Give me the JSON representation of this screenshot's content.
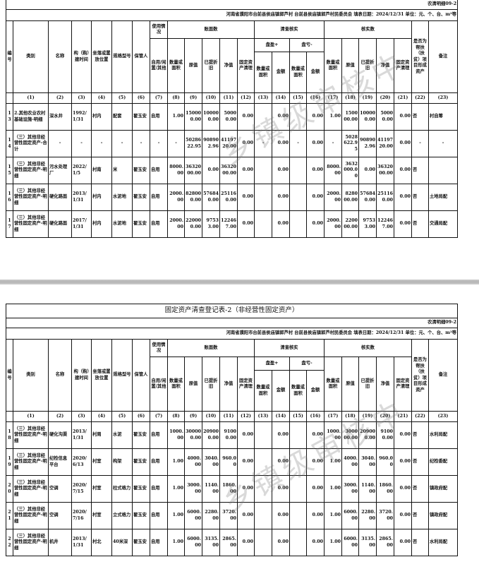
{
  "watermark": "乡镇级审核中",
  "title": "固定资产清查登记表-2（非经营性固定资产）",
  "form_code": "农清明细09-2",
  "info_line": "河南省濮阳市台前县侯庙镇郭芦村  台前县侯庙镇郭芦村民委员会  填表日期：2024/12/31  单位：元、个、台、m²等",
  "headers": {
    "no": "编号",
    "category": "类别",
    "name": "名称",
    "date": "构（购）建时间",
    "location": "坐落或置放位置",
    "spec": "规格型号",
    "keeper": "保管人",
    "usage_group": "使用情况",
    "usage": "自用/闲置/其他",
    "book_group": "账面数",
    "check_group": "清查核实",
    "verified_group": "核实数",
    "qty": "数量或面积",
    "orig": "原值",
    "depr": "已提折旧",
    "net": "净值",
    "clear": "固定资产清理",
    "gain": "盘盈+",
    "loss": "盘亏-",
    "amount": "金额",
    "aid": "是否为帮扶（扶贫）项目形成资产",
    "remark": "备注"
  },
  "index_labels": [
    "",
    "(1)",
    "(2)",
    "(3)",
    "(4)",
    "(5)",
    "(6)",
    "(7)",
    "(8)",
    "(9)",
    "(10)",
    "(11)",
    "(12)",
    "(13)",
    "(14)",
    "(15)",
    "(16)",
    "(17)",
    "(18)",
    "(19)",
    "(20)",
    "(21)",
    "(22)",
    "(23)"
  ],
  "pages": [
    {
      "rows": [
        [
          "13",
          "2.其他农业农村基础设施-明细",
          "深水井",
          "1992/1/31",
          "村内",
          "配套",
          "翟玉安",
          "自用",
          "1.00",
          "150000.00",
          "100000.00",
          "50000.00",
          "0.00",
          "",
          "0.00",
          "",
          "0.00",
          "1.00",
          "150000.00",
          "100000.00",
          "50000.00",
          "0.00",
          "否",
          "村自筹"
        ],
        [
          "14",
          "（三）其他非经营性固定资产-合计",
          "-",
          "-",
          "-",
          "-",
          "-",
          "-",
          "-",
          "5028622.95",
          "908902.96",
          "4119720.00",
          "0.00",
          "-",
          "0.00",
          "-",
          "0.00",
          "-",
          "5028622.95",
          "908902.96",
          "4119720.00",
          "0.00",
          "-",
          "-"
        ],
        [
          "15",
          "（三）其他非经营性固定资产-明细",
          "污水处理厂",
          "2022/1/5",
          "村南",
          "米",
          "翟玉安",
          "自用",
          "8000.00",
          "3632000.00",
          "0.00",
          "3632000.00",
          "0.00",
          "",
          "0.00",
          "",
          "0.00",
          "8000.00",
          "3632000.00",
          "0.00",
          "3632000.00",
          "0.00",
          "否",
          ""
        ],
        [
          "16",
          "（三）其他非经营性固定资产-明细",
          "硬化路面",
          "2013/1/31",
          "村内",
          "水泥地",
          "翟玉安",
          "自用",
          "2000.00",
          "828000.00",
          "576840.00",
          "251160.00",
          "0.00",
          "",
          "0.00",
          "",
          "0.00",
          "2000.00",
          "828000.00",
          "576840.00",
          "251160.00",
          "0.00",
          "否",
          "土地局配"
        ],
        [
          "17",
          "（三）其他非经营性固定资产-明细",
          "硬化路面",
          "2017/1/31",
          "村内",
          "水泥地",
          "翟玉安",
          "自用",
          "2000.00",
          "220000.00",
          "97533.00",
          "122467.00",
          "0.00",
          "",
          "0.00",
          "",
          "0.00",
          "2000.00",
          "220000.00",
          "97533.00",
          "122467.00",
          "0.00",
          "否",
          "交通局配"
        ]
      ]
    },
    {
      "rows": [
        [
          "18",
          "（三）其他非经营性固定资产-明细",
          "硬化沟渠",
          "2013/1/31",
          "村周",
          "水泥",
          "翟玉安",
          "自用",
          "1000.00",
          "300000.00",
          "209000.00",
          "91000.00",
          "0.00",
          "",
          "0.00",
          "",
          "0.00",
          "1000.00",
          "300000.00",
          "209000.00",
          "91000.00",
          "0.00",
          "否",
          "水利局配"
        ],
        [
          "19",
          "（三）其他非经营性固定资产-明细",
          "纪检信息平台",
          "2020/6/13",
          "村室",
          "构架",
          "翟玉安",
          "自用",
          "1.00",
          "4000.00",
          "3040.00",
          "960.00",
          "0.00",
          "",
          "0.00",
          "",
          "0.00",
          "1.00",
          "4000.00",
          "3040.00",
          "960.00",
          "0.00",
          "否",
          "纪检委配"
        ],
        [
          "20",
          "（三）其他非经营性固定资产-明细",
          "空调",
          "2020/7/15",
          "村室",
          "柱式格力",
          "翟玉安",
          "自用",
          "1.00",
          "3000.00",
          "1140.00",
          "1860.00",
          "0.00",
          "",
          "0.00",
          "",
          "0.00",
          "1.00",
          "3000.00",
          "1140.00",
          "1860.00",
          "0.00",
          "否",
          "镇政府配"
        ],
        [
          "21",
          "（三）其他非经营性固定资产-明细",
          "空调",
          "2020/7/16",
          "村室",
          "立式格力",
          "翟玉安",
          "自用",
          "1.00",
          "6000.00",
          "2280.00",
          "3720.00",
          "0.00",
          "",
          "0.00",
          "",
          "0.00",
          "1.00",
          "6000.00",
          "2280.00",
          "3720.00",
          "0.00",
          "否",
          "镇政府配"
        ],
        [
          "22",
          "（三）其他非经营性固定资产-明细",
          "机井",
          "2013/1/31",
          "村北",
          "40米深",
          "翟玉安",
          "自用",
          "1.00",
          "6000.00",
          "3135.00",
          "2865.00",
          "0.00",
          "",
          "0.00",
          "",
          "0.00",
          "1.00",
          "6000.00",
          "3135.00",
          "2865.00",
          "0.00",
          "否",
          "水利局配"
        ]
      ]
    }
  ]
}
